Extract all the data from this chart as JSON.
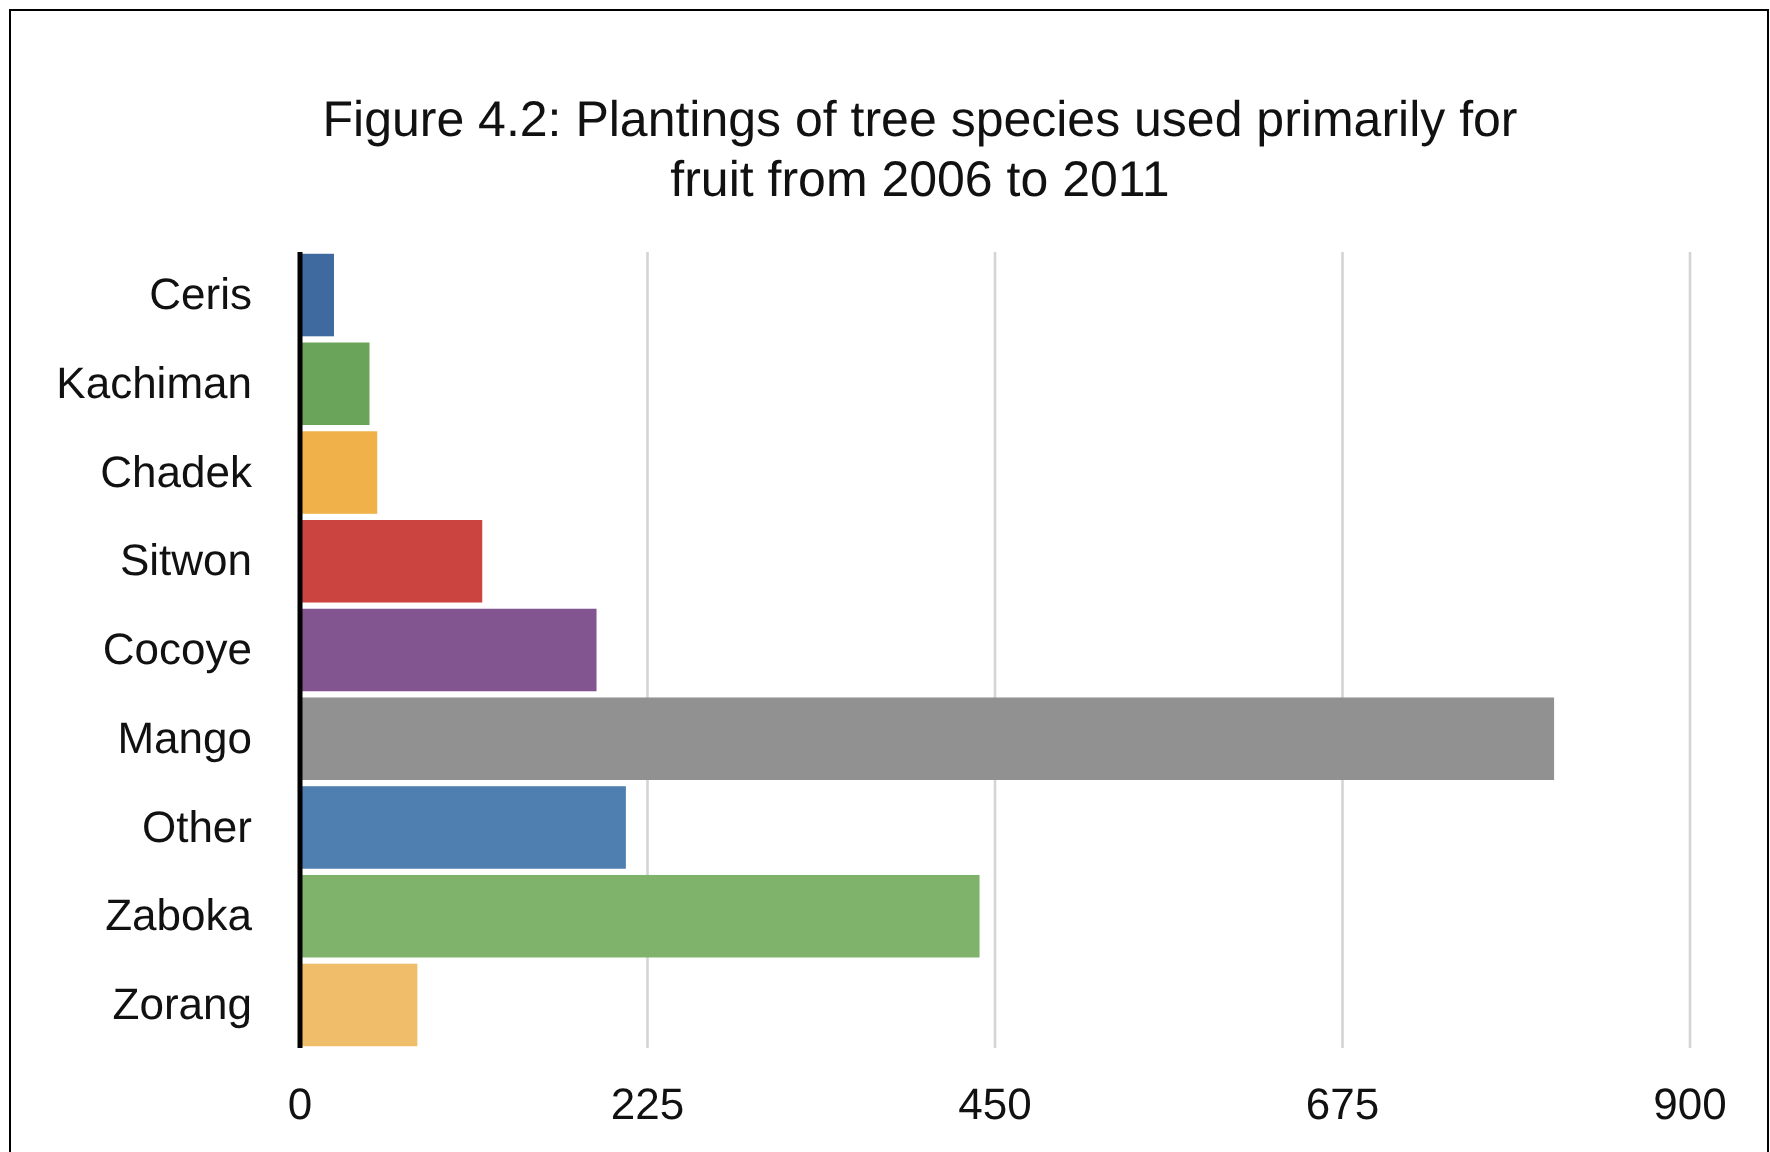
{
  "chart_data": {
    "type": "bar",
    "orientation": "horizontal",
    "title": "Figure 4.2: Plantings of tree species used primarily for fruit from 2006 to 2011",
    "categories": [
      "Ceris",
      "Kachiman",
      "Chadek",
      "Sitwon",
      "Cocoye",
      "Mango",
      "Other",
      "Zaboka",
      "Zorang"
    ],
    "values": [
      22,
      45,
      50,
      118,
      192,
      812,
      211,
      440,
      76
    ],
    "colors": [
      "#3e6aa0",
      "#6aa35a",
      "#f0b04a",
      "#cc4440",
      "#835590",
      "#919191",
      "#4f7fb0",
      "#7fb36b",
      "#f0bd6a"
    ],
    "xlim": [
      0,
      900
    ],
    "xticks": [
      0,
      225,
      450,
      675,
      900
    ],
    "grid": "x"
  }
}
